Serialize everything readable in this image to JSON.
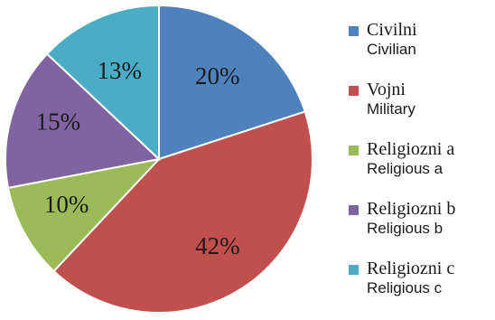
{
  "chart_data": {
    "type": "pie",
    "title": "",
    "legend_position": "right",
    "slices": [
      {
        "label": "Civilni",
        "sublabel": "Civilian",
        "value": 20,
        "value_label": "20%",
        "color": "#4F81BD"
      },
      {
        "label": "Vojni",
        "sublabel": "Military",
        "value": 42,
        "value_label": "42%",
        "color": "#C0504D"
      },
      {
        "label": "Religiozni a",
        "sublabel": "Religious a",
        "value": 10,
        "value_label": "10%",
        "color": "#9BBB59"
      },
      {
        "label": "Religiozni b",
        "sublabel": "Religious b",
        "value": 15,
        "value_label": "15%",
        "color": "#8064A2"
      },
      {
        "label": "Religiozni c",
        "sublabel": "Religious c",
        "value": 13,
        "value_label": "13%",
        "color": "#4BACC6"
      }
    ]
  }
}
